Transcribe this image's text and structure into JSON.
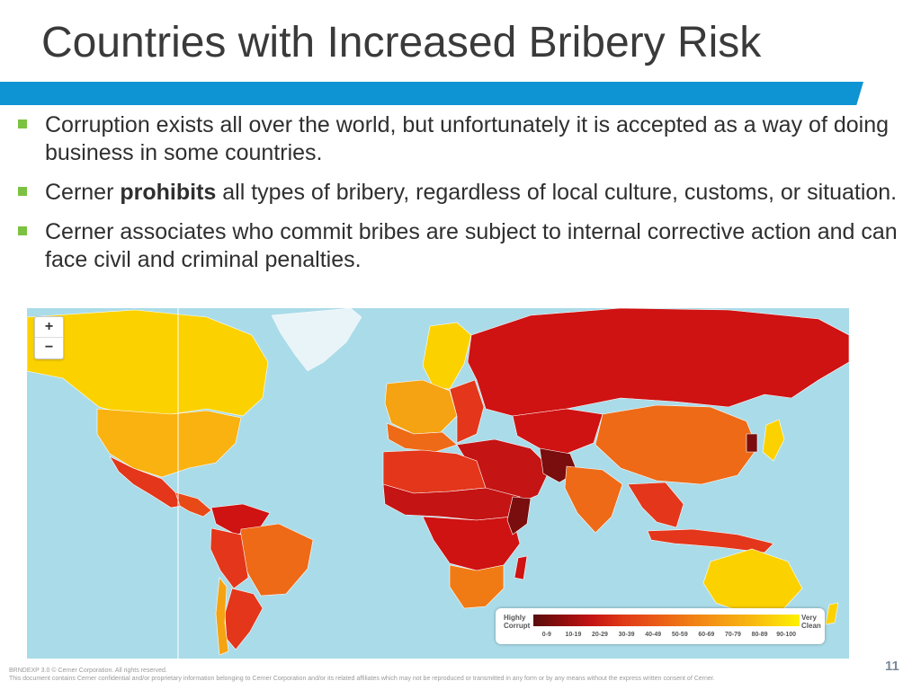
{
  "slide": {
    "title": "Countries with Increased Bribery Risk",
    "bullets": [
      {
        "text": "Corruption exists all over the world, but unfortunately it is accepted as a way of doing business in some countries."
      },
      {
        "before": "Cerner ",
        "bold": "prohibits",
        "after": " all types of bribery, regardless of local culture, customs, or situation."
      },
      {
        "text": "Cerner associates who commit bribes are subject to internal corrective action and can face civil and criminal penalties."
      }
    ],
    "page_number": "11",
    "footer_line1": "BRNDEXP 3.0 © Cerner Corporation. All rights reserved.",
    "footer_line2": "This document contains Cerner confidential and/or proprietary information belonging to Cerner Corporation and/or its related affiliates which may not be reproduced or transmitted in any form or by any means without the express written consent of Cerner."
  },
  "map": {
    "zoom_in": "+",
    "zoom_out": "−",
    "colors": {
      "ocean": "#aadbe8",
      "very_corrupt": "#7a0d0d",
      "corrupt": "#d01212",
      "mid_low": "#e3361a",
      "mid": "#ee6a17",
      "mid_high": "#f5a312",
      "clean": "#fbd100",
      "ice": "#e8f4f8"
    },
    "legend": {
      "left_label": "Highly Corrupt",
      "right_label": "Very Clean",
      "ticks": [
        "0-9",
        "10-19",
        "20-29",
        "30-39",
        "40-49",
        "50-59",
        "60-69",
        "70-79",
        "80-89",
        "90-100"
      ]
    }
  }
}
